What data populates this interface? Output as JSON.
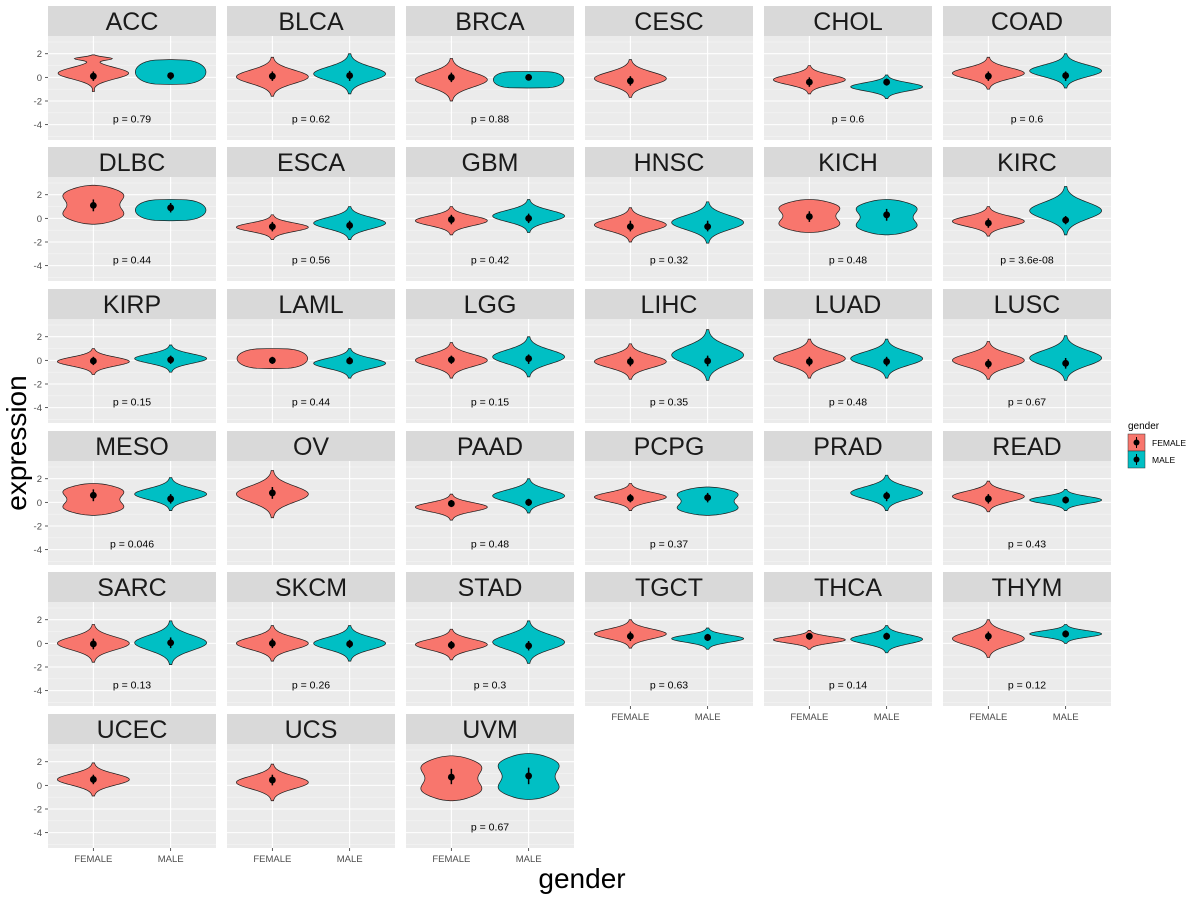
{
  "chart_data": {
    "type": "violin",
    "xlabel": "gender",
    "ylabel": "expression",
    "ylim": [
      -5.3,
      3.5
    ],
    "yticks": [
      "2",
      "0",
      "-2",
      "-4"
    ],
    "ytick_values": [
      2,
      0,
      -2,
      -4
    ],
    "categories": [
      "FEMALE",
      "MALE"
    ],
    "colors": {
      "FEMALE": "#F8766D",
      "MALE": "#00BFC4"
    },
    "legend": {
      "title": "gender",
      "entries": [
        "FEMALE",
        "MALE"
      ],
      "position": "right"
    },
    "grid": true,
    "ncol": 6,
    "facets": [
      {
        "name": "ACC",
        "p": "p = 0.79",
        "f": {
          "min": -1.2,
          "max": 1.9,
          "med": 0.1,
          "q1": -0.3,
          "q3": 0.5,
          "shape": "d"
        },
        "m": {
          "min": -0.6,
          "max": 1.5,
          "med": 0.15,
          "q1": -0.2,
          "q3": 0.4,
          "shape": "f"
        }
      },
      {
        "name": "BLCA",
        "p": "p = 0.62",
        "f": {
          "min": -1.6,
          "max": 1.7,
          "med": 0.1,
          "q1": -0.3,
          "q3": 0.5,
          "shape": "n"
        },
        "m": {
          "min": -1.4,
          "max": 2.0,
          "med": 0.15,
          "q1": -0.3,
          "q3": 0.55,
          "shape": "n"
        }
      },
      {
        "name": "BRCA",
        "p": "p = 0.88",
        "f": {
          "min": -2.0,
          "max": 1.6,
          "med": 0.0,
          "q1": -0.4,
          "q3": 0.4,
          "shape": "n"
        },
        "m": {
          "min": -0.9,
          "max": 0.5,
          "med": 0.0,
          "q1": -0.2,
          "q3": 0.2,
          "shape": "t"
        }
      },
      {
        "name": "CESC",
        "p": "",
        "f": {
          "min": -1.7,
          "max": 1.5,
          "med": -0.3,
          "q1": -0.7,
          "q3": 0.1,
          "shape": "n"
        },
        "m": null
      },
      {
        "name": "CHOL",
        "p": "p = 0.6",
        "f": {
          "min": -1.4,
          "max": 1.0,
          "med": -0.4,
          "q1": -0.8,
          "q3": 0.0,
          "shape": "n"
        },
        "m": {
          "min": -1.8,
          "max": 0.2,
          "med": -0.4,
          "q1": -0.7,
          "q3": -0.1,
          "shape": "n"
        }
      },
      {
        "name": "COAD",
        "p": "p = 0.6",
        "f": {
          "min": -1.0,
          "max": 1.7,
          "med": 0.1,
          "q1": -0.3,
          "q3": 0.5,
          "shape": "n"
        },
        "m": {
          "min": -0.9,
          "max": 2.0,
          "med": 0.15,
          "q1": -0.3,
          "q3": 0.5,
          "shape": "n"
        }
      },
      {
        "name": "DLBC",
        "p": "p = 0.44",
        "f": {
          "min": -0.5,
          "max": 2.8,
          "med": 1.1,
          "q1": 0.6,
          "q3": 1.6,
          "shape": "w"
        },
        "m": {
          "min": -0.2,
          "max": 1.6,
          "med": 0.9,
          "q1": 0.5,
          "q3": 1.3,
          "shape": "f"
        }
      },
      {
        "name": "ESCA",
        "p": "p = 0.56",
        "f": {
          "min": -1.8,
          "max": 0.3,
          "med": -0.7,
          "q1": -1.1,
          "q3": -0.3,
          "shape": "n"
        },
        "m": {
          "min": -1.8,
          "max": 1.0,
          "med": -0.6,
          "q1": -1.0,
          "q3": -0.2,
          "shape": "n"
        }
      },
      {
        "name": "GBM",
        "p": "p = 0.42",
        "f": {
          "min": -1.4,
          "max": 1.0,
          "med": -0.1,
          "q1": -0.5,
          "q3": 0.3,
          "shape": "n"
        },
        "m": {
          "min": -1.2,
          "max": 1.6,
          "med": 0.0,
          "q1": -0.4,
          "q3": 0.4,
          "shape": "n"
        }
      },
      {
        "name": "HNSC",
        "p": "p = 0.32",
        "f": {
          "min": -2.0,
          "max": 0.9,
          "med": -0.7,
          "q1": -1.1,
          "q3": -0.2,
          "shape": "n"
        },
        "m": {
          "min": -2.1,
          "max": 1.4,
          "med": -0.7,
          "q1": -1.1,
          "q3": -0.2,
          "shape": "n"
        }
      },
      {
        "name": "KICH",
        "p": "p = 0.48",
        "f": {
          "min": -1.2,
          "max": 1.6,
          "med": 0.15,
          "q1": -0.3,
          "q3": 0.6,
          "shape": "w"
        },
        "m": {
          "min": -1.4,
          "max": 1.6,
          "med": 0.3,
          "q1": -0.2,
          "q3": 0.8,
          "shape": "w"
        }
      },
      {
        "name": "KIRC",
        "p": "p = 3.6e-08",
        "f": {
          "min": -1.5,
          "max": 1.0,
          "med": -0.4,
          "q1": -0.8,
          "q3": 0.0,
          "shape": "n"
        },
        "m": {
          "min": -1.4,
          "max": 2.7,
          "med": -0.15,
          "q1": -0.5,
          "q3": 0.2,
          "shape": "n"
        }
      },
      {
        "name": "KIRP",
        "p": "p = 0.15",
        "f": {
          "min": -1.2,
          "max": 1.0,
          "med": -0.05,
          "q1": -0.4,
          "q3": 0.3,
          "shape": "n"
        },
        "m": {
          "min": -1.0,
          "max": 1.3,
          "med": 0.05,
          "q1": -0.3,
          "q3": 0.4,
          "shape": "n"
        }
      },
      {
        "name": "LAML",
        "p": "p = 0.44",
        "f": {
          "min": -0.7,
          "max": 1.0,
          "med": 0.0,
          "q1": -0.3,
          "q3": 0.3,
          "shape": "f"
        },
        "m": {
          "min": -1.5,
          "max": 1.0,
          "med": -0.05,
          "q1": -0.3,
          "q3": 0.3,
          "shape": "n"
        }
      },
      {
        "name": "LGG",
        "p": "p = 0.15",
        "f": {
          "min": -1.5,
          "max": 1.5,
          "med": 0.05,
          "q1": -0.3,
          "q3": 0.4,
          "shape": "n"
        },
        "m": {
          "min": -1.4,
          "max": 2.0,
          "med": 0.15,
          "q1": -0.3,
          "q3": 0.5,
          "shape": "n"
        }
      },
      {
        "name": "LIHC",
        "p": "p = 0.35",
        "f": {
          "min": -1.6,
          "max": 1.4,
          "med": -0.1,
          "q1": -0.5,
          "q3": 0.3,
          "shape": "n"
        },
        "m": {
          "min": -1.7,
          "max": 2.6,
          "med": -0.05,
          "q1": -0.5,
          "q3": 0.4,
          "shape": "n"
        }
      },
      {
        "name": "LUAD",
        "p": "p = 0.48",
        "f": {
          "min": -1.5,
          "max": 1.8,
          "med": -0.1,
          "q1": -0.5,
          "q3": 0.3,
          "shape": "n"
        },
        "m": {
          "min": -1.5,
          "max": 1.8,
          "med": -0.1,
          "q1": -0.5,
          "q3": 0.3,
          "shape": "n"
        }
      },
      {
        "name": "LUSC",
        "p": "p = 0.67",
        "f": {
          "min": -1.6,
          "max": 1.6,
          "med": -0.3,
          "q1": -0.7,
          "q3": 0.1,
          "shape": "n"
        },
        "m": {
          "min": -1.7,
          "max": 2.1,
          "med": -0.25,
          "q1": -0.7,
          "q3": 0.2,
          "shape": "n"
        }
      },
      {
        "name": "MESO",
        "p": "p = 0.046",
        "f": {
          "min": -1.1,
          "max": 1.6,
          "med": 0.6,
          "q1": 0.1,
          "q3": 1.1,
          "shape": "w"
        },
        "m": {
          "min": -0.7,
          "max": 2.1,
          "med": 0.3,
          "q1": -0.1,
          "q3": 0.7,
          "shape": "n"
        }
      },
      {
        "name": "OV",
        "p": "",
        "f": {
          "min": -1.3,
          "max": 2.7,
          "med": 0.8,
          "q1": 0.3,
          "q3": 1.3,
          "shape": "n"
        },
        "m": null
      },
      {
        "name": "PAAD",
        "p": "p = 0.48",
        "f": {
          "min": -1.5,
          "max": 0.7,
          "med": -0.1,
          "q1": -0.4,
          "q3": 0.2,
          "shape": "n"
        },
        "m": {
          "min": -0.9,
          "max": 2.0,
          "med": 0.0,
          "q1": -0.3,
          "q3": 0.3,
          "shape": "n"
        }
      },
      {
        "name": "PCPG",
        "p": "p = 0.37",
        "f": {
          "min": -0.7,
          "max": 1.6,
          "med": 0.35,
          "q1": 0.0,
          "q3": 0.7,
          "shape": "n"
        },
        "m": {
          "min": -1.1,
          "max": 1.3,
          "med": 0.4,
          "q1": 0.0,
          "q3": 0.8,
          "shape": "w"
        }
      },
      {
        "name": "PRAD",
        "p": "",
        "f": null,
        "m": {
          "min": -0.7,
          "max": 2.3,
          "med": 0.55,
          "q1": 0.1,
          "q3": 0.9,
          "shape": "n"
        }
      },
      {
        "name": "READ",
        "p": "p = 0.43",
        "f": {
          "min": -0.8,
          "max": 1.8,
          "med": 0.3,
          "q1": -0.1,
          "q3": 0.7,
          "shape": "n"
        },
        "m": {
          "min": -0.7,
          "max": 1.1,
          "med": 0.2,
          "q1": -0.1,
          "q3": 0.5,
          "shape": "n"
        }
      },
      {
        "name": "SARC",
        "p": "p = 0.13",
        "f": {
          "min": -1.6,
          "max": 1.6,
          "med": -0.05,
          "q1": -0.5,
          "q3": 0.4,
          "shape": "n"
        },
        "m": {
          "min": -1.8,
          "max": 1.9,
          "med": 0.05,
          "q1": -0.4,
          "q3": 0.5,
          "shape": "n"
        }
      },
      {
        "name": "SKCM",
        "p": "p = 0.26",
        "f": {
          "min": -1.5,
          "max": 1.5,
          "med": 0.0,
          "q1": -0.4,
          "q3": 0.4,
          "shape": "n"
        },
        "m": {
          "min": -1.5,
          "max": 1.5,
          "med": -0.05,
          "q1": -0.4,
          "q3": 0.3,
          "shape": "n"
        }
      },
      {
        "name": "STAD",
        "p": "p = 0.3",
        "f": {
          "min": -1.4,
          "max": 1.2,
          "med": -0.15,
          "q1": -0.5,
          "q3": 0.2,
          "shape": "n"
        },
        "m": {
          "min": -1.7,
          "max": 1.9,
          "med": -0.2,
          "q1": -0.6,
          "q3": 0.2,
          "shape": "n"
        }
      },
      {
        "name": "TGCT",
        "p": "p = 0.63",
        "f": {
          "min": -0.4,
          "max": 2.0,
          "med": 0.6,
          "q1": 0.2,
          "q3": 1.0,
          "shape": "n"
        },
        "m": {
          "min": -0.5,
          "max": 1.3,
          "med": 0.5,
          "q1": 0.2,
          "q3": 0.8,
          "shape": "n"
        }
      },
      {
        "name": "THCA",
        "p": "p = 0.14",
        "f": {
          "min": -0.5,
          "max": 1.1,
          "med": 0.6,
          "q1": 0.3,
          "q3": 0.8,
          "shape": "n"
        },
        "m": {
          "min": -0.8,
          "max": 1.5,
          "med": 0.6,
          "q1": 0.3,
          "q3": 0.9,
          "shape": "n"
        }
      },
      {
        "name": "THYM",
        "p": "p = 0.12",
        "f": {
          "min": -1.2,
          "max": 2.0,
          "med": 0.6,
          "q1": 0.2,
          "q3": 1.0,
          "shape": "n"
        },
        "m": {
          "min": 0.0,
          "max": 1.6,
          "med": 0.8,
          "q1": 0.5,
          "q3": 1.1,
          "shape": "n"
        }
      },
      {
        "name": "UCEC",
        "p": "",
        "f": {
          "min": -0.9,
          "max": 1.9,
          "med": 0.5,
          "q1": 0.1,
          "q3": 0.9,
          "shape": "n"
        },
        "m": null
      },
      {
        "name": "UCS",
        "p": "",
        "f": {
          "min": -1.3,
          "max": 1.8,
          "med": 0.45,
          "q1": 0.0,
          "q3": 0.9,
          "shape": "n"
        },
        "m": null
      },
      {
        "name": "UVM",
        "p": "p = 0.67",
        "f": {
          "min": -1.3,
          "max": 2.5,
          "med": 0.7,
          "q1": 0.1,
          "q3": 1.4,
          "shape": "w"
        },
        "m": {
          "min": -1.2,
          "max": 2.7,
          "med": 0.8,
          "q1": 0.1,
          "q3": 1.5,
          "shape": "w"
        }
      }
    ]
  }
}
